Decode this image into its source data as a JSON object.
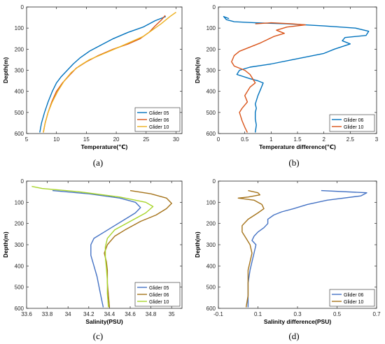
{
  "figure_captions": [
    "(a)",
    "(b)",
    "(c)",
    "(d)"
  ],
  "chart_data": [
    {
      "panel": "(a)",
      "type": "line",
      "xlabel": "Temperature(℃)",
      "ylabel": "Depth(m)",
      "xlim": [
        5,
        31
      ],
      "ylim": [
        0,
        600
      ],
      "y_reversed": true,
      "xticks": [
        5,
        10,
        15,
        20,
        25,
        30
      ],
      "yticks": [
        0,
        100,
        200,
        300,
        400,
        500,
        600
      ],
      "legend_position": "bottom-right",
      "grid": false,
      "series": [
        {
          "name": "Glider 05",
          "color": "#0072BD",
          "x": [
            28.3,
            26.5,
            24.5,
            22.0,
            19.5,
            17.5,
            15.5,
            14.0,
            12.8,
            11.8,
            10.8,
            10.0,
            9.3,
            8.6,
            8.0,
            7.5,
            7.2
          ],
          "y": [
            45,
            65,
            95,
            120,
            150,
            180,
            210,
            240,
            270,
            300,
            330,
            360,
            400,
            450,
            500,
            550,
            595
          ]
        },
        {
          "name": "Glider 06",
          "color": "#D95319",
          "x": [
            28.2,
            27.6,
            26.5,
            25.5,
            24.0,
            22.0,
            19.5,
            17.0,
            15.0,
            13.3,
            12.3,
            11.0,
            10.0,
            9.2,
            8.6,
            8.1,
            7.8
          ],
          "y": [
            40,
            60,
            90,
            120,
            150,
            175,
            200,
            230,
            260,
            290,
            320,
            360,
            400,
            450,
            500,
            550,
            595
          ]
        },
        {
          "name": "Glider 10",
          "color": "#EDB120",
          "x": [
            30.0,
            29.0,
            27.5,
            26.0,
            24.5,
            22.5,
            20.5,
            18.0,
            15.5,
            13.8,
            12.5,
            11.3,
            10.2,
            9.3,
            8.6,
            8.1,
            7.8
          ],
          "y": [
            25,
            45,
            80,
            110,
            140,
            165,
            190,
            220,
            250,
            280,
            310,
            350,
            400,
            450,
            500,
            550,
            595
          ]
        }
      ]
    },
    {
      "panel": "(b)",
      "type": "line",
      "xlabel": "Temperature difference(℃)",
      "ylabel": "Depth(m)",
      "xlim": [
        0,
        3
      ],
      "ylim": [
        0,
        600
      ],
      "y_reversed": true,
      "xticks": [
        0,
        0.5,
        1,
        1.5,
        2,
        2.5,
        3
      ],
      "yticks": [
        0,
        100,
        200,
        300,
        400,
        500,
        600
      ],
      "legend_position": "bottom-right",
      "grid": false,
      "series": [
        {
          "name": "Glider 06",
          "color": "#0072BD",
          "x": [
            0.2,
            0.1,
            0.15,
            0.3,
            0.7,
            1.3,
            2.0,
            2.6,
            2.85,
            2.8,
            2.4,
            2.35,
            2.5,
            2.2,
            2.0,
            1.4,
            1.0,
            0.6,
            0.4,
            0.35,
            0.6,
            0.75,
            0.85,
            0.8,
            0.75,
            0.7,
            0.72,
            0.7,
            0.7,
            0.72,
            0.7
          ],
          "y": [
            55,
            45,
            60,
            70,
            75,
            80,
            90,
            100,
            115,
            135,
            145,
            160,
            175,
            200,
            220,
            250,
            270,
            285,
            300,
            320,
            340,
            350,
            360,
            390,
            420,
            460,
            480,
            500,
            530,
            560,
            595
          ]
        },
        {
          "name": "Glider 10",
          "color": "#D95319",
          "x": [
            0.7,
            1.0,
            1.4,
            1.65,
            1.3,
            1.1,
            1.25,
            1.05,
            0.8,
            0.6,
            0.4,
            0.3,
            0.25,
            0.3,
            0.5,
            0.6,
            0.7,
            0.6,
            0.55,
            0.5,
            0.55,
            0.45,
            0.4,
            0.45,
            0.5,
            0.55
          ],
          "y": [
            80,
            75,
            80,
            85,
            95,
            110,
            125,
            140,
            170,
            190,
            210,
            230,
            260,
            280,
            300,
            320,
            360,
            380,
            400,
            420,
            450,
            480,
            500,
            540,
            570,
            595
          ]
        }
      ]
    },
    {
      "panel": "(c)",
      "type": "line",
      "xlabel": "Salinity(PSU)",
      "ylabel": "Depth(m)",
      "xlim": [
        33.6,
        35.1
      ],
      "ylim": [
        0,
        600
      ],
      "y_reversed": true,
      "xticks": [
        33.6,
        33.8,
        34,
        34.2,
        34.4,
        34.6,
        34.8,
        35
      ],
      "yticks": [
        0,
        100,
        200,
        300,
        400,
        500,
        600
      ],
      "legend_position": "bottom-right",
      "grid": false,
      "series": [
        {
          "name": "Glider 05",
          "color": "#4472C4",
          "x": [
            33.85,
            34.2,
            34.5,
            34.65,
            34.7,
            34.65,
            34.55,
            34.45,
            34.35,
            34.25,
            34.22,
            34.22,
            34.25,
            34.28,
            34.3,
            34.32,
            34.34
          ],
          "y": [
            45,
            60,
            80,
            100,
            125,
            150,
            180,
            210,
            240,
            270,
            300,
            350,
            400,
            450,
            500,
            550,
            595
          ]
        },
        {
          "name": "Glider 06",
          "color": "#A5731A",
          "x": [
            34.6,
            34.8,
            34.95,
            35.0,
            34.95,
            34.85,
            34.7,
            34.55,
            34.45,
            34.38,
            34.35,
            34.37,
            34.38,
            34.38,
            34.39,
            34.4
          ],
          "y": [
            45,
            60,
            80,
            105,
            130,
            160,
            190,
            230,
            260,
            300,
            340,
            380,
            420,
            480,
            540,
            595
          ]
        },
        {
          "name": "Glider 10",
          "color": "#A8D52A",
          "x": [
            33.65,
            33.75,
            34.1,
            34.5,
            34.75,
            34.82,
            34.75,
            34.6,
            34.45,
            34.38,
            34.36,
            34.36,
            34.37,
            34.38,
            34.38,
            34.39
          ],
          "y": [
            25,
            35,
            50,
            75,
            100,
            120,
            150,
            190,
            230,
            270,
            310,
            360,
            410,
            470,
            530,
            595
          ]
        }
      ]
    },
    {
      "panel": "(d)",
      "type": "line",
      "xlabel": "Salinity difference(PSU)",
      "ylabel": "Depth(m)",
      "xlim": [
        -0.1,
        0.7
      ],
      "ylim": [
        0,
        600
      ],
      "y_reversed": true,
      "xticks": [
        -0.1,
        0.1,
        0.3,
        0.5,
        0.7
      ],
      "yticks": [
        0,
        100,
        200,
        300,
        400,
        500,
        600
      ],
      "legend_position": "bottom-right",
      "grid": false,
      "series": [
        {
          "name": "Glider 06",
          "color": "#4472C4",
          "x": [
            0.42,
            0.65,
            0.62,
            0.45,
            0.35,
            0.28,
            0.22,
            0.18,
            0.15,
            0.15,
            0.13,
            0.1,
            0.08,
            0.07,
            0.09,
            0.08,
            0.07,
            0.06,
            0.05,
            0.05,
            0.05
          ],
          "y": [
            45,
            55,
            70,
            90,
            110,
            130,
            145,
            160,
            180,
            200,
            220,
            240,
            260,
            280,
            300,
            340,
            380,
            420,
            480,
            540,
            595
          ]
        },
        {
          "name": "Glider 10",
          "color": "#A5731A",
          "x": [
            0.05,
            0.1,
            0.11,
            0.05,
            0.0,
            0.08,
            0.12,
            0.13,
            0.1,
            0.05,
            0.02,
            0.02,
            0.04,
            0.06,
            0.07,
            0.06,
            0.05,
            0.05,
            0.05,
            0.04
          ],
          "y": [
            45,
            55,
            65,
            75,
            80,
            90,
            110,
            130,
            150,
            180,
            210,
            240,
            270,
            300,
            340,
            380,
            420,
            480,
            540,
            595
          ]
        }
      ]
    }
  ]
}
